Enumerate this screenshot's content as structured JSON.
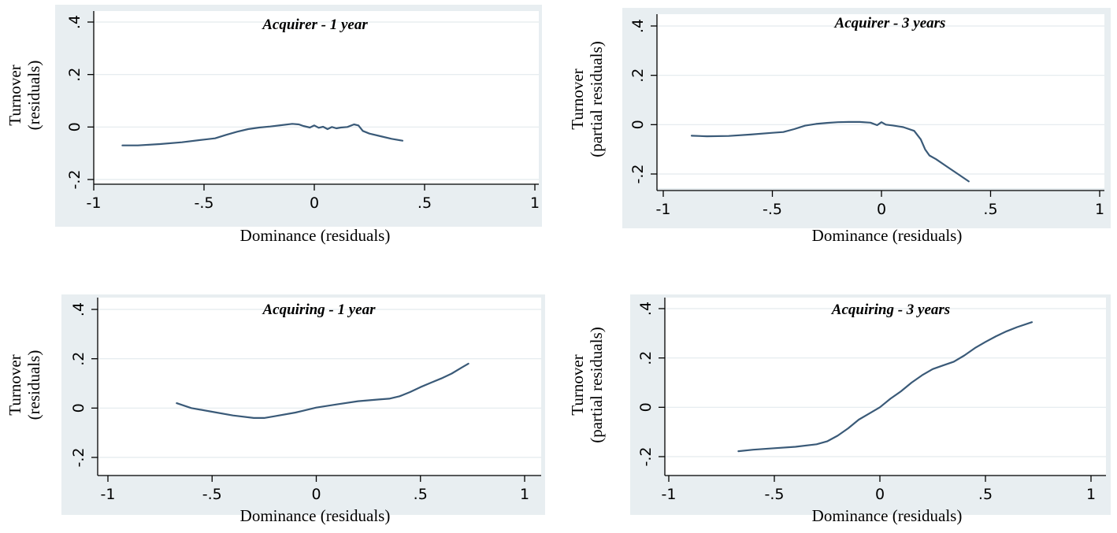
{
  "chart_data": [
    {
      "type": "line",
      "title": "Acquirer - 1 year",
      "xlabel": "Dominance (residuals)",
      "ylabel_lines": [
        "Turnover",
        "(residuals)"
      ],
      "xlim": [
        -1,
        1
      ],
      "ylim": [
        -0.2,
        0.4
      ],
      "xticks": [
        -1,
        -0.5,
        0,
        0.5,
        1
      ],
      "xtick_labels": [
        "-1",
        "-.5",
        "0",
        ".5",
        "1"
      ],
      "yticks": [
        -0.2,
        0,
        0.2,
        0.4
      ],
      "ytick_labels": [
        "-.2",
        "0",
        ".2",
        ".4"
      ],
      "grid": true,
      "series": [
        {
          "color": "#3a5a78",
          "x": [
            -0.87,
            -0.8,
            -0.7,
            -0.6,
            -0.5,
            -0.45,
            -0.4,
            -0.35,
            -0.3,
            -0.25,
            -0.2,
            -0.15,
            -0.1,
            -0.07,
            -0.05,
            -0.02,
            0.0,
            0.02,
            0.04,
            0.06,
            0.08,
            0.1,
            0.12,
            0.15,
            0.18,
            0.2,
            0.22,
            0.25,
            0.3,
            0.35,
            0.4
          ],
          "y": [
            -0.07,
            -0.07,
            -0.065,
            -0.058,
            -0.048,
            -0.043,
            -0.03,
            -0.018,
            -0.008,
            -0.002,
            0.002,
            0.007,
            0.012,
            0.01,
            0.004,
            -0.002,
            0.006,
            -0.003,
            0.001,
            -0.008,
            0.0,
            -0.005,
            -0.002,
            0.0,
            0.01,
            0.006,
            -0.015,
            -0.025,
            -0.035,
            -0.045,
            -0.052
          ]
        }
      ]
    },
    {
      "type": "line",
      "title": "Acquirer - 3 years",
      "xlabel": "Dominance (residuals)",
      "ylabel_lines": [
        "Turnover",
        "(partial residuals)"
      ],
      "xlim": [
        -1,
        1
      ],
      "ylim": [
        -0.2,
        0.4
      ],
      "xticks": [
        -1,
        -0.5,
        0,
        0.5,
        1
      ],
      "xtick_labels": [
        "-1",
        "-.5",
        "0",
        ".5",
        "1"
      ],
      "yticks": [
        -0.2,
        0,
        0.2,
        0.4
      ],
      "ytick_labels": [
        "-.2",
        "0",
        ".2",
        ".4"
      ],
      "grid": true,
      "series": [
        {
          "color": "#3a5a78",
          "x": [
            -0.87,
            -0.8,
            -0.7,
            -0.6,
            -0.5,
            -0.45,
            -0.4,
            -0.35,
            -0.3,
            -0.25,
            -0.2,
            -0.15,
            -0.1,
            -0.05,
            -0.02,
            0.0,
            0.02,
            0.05,
            0.1,
            0.15,
            0.18,
            0.2,
            0.22,
            0.25,
            0.3,
            0.35,
            0.4
          ],
          "y": [
            -0.045,
            -0.047,
            -0.046,
            -0.04,
            -0.033,
            -0.03,
            -0.018,
            -0.004,
            0.003,
            0.007,
            0.01,
            0.011,
            0.011,
            0.008,
            -0.002,
            0.01,
            0.0,
            -0.003,
            -0.01,
            -0.025,
            -0.06,
            -0.1,
            -0.125,
            -0.14,
            -0.17,
            -0.2,
            -0.23
          ]
        }
      ]
    },
    {
      "type": "line",
      "title": "Acquiring - 1 year",
      "xlabel": "Dominance (residuals)",
      "ylabel_lines": [
        "Turnover",
        "(residuals)"
      ],
      "xlim": [
        -1,
        1
      ],
      "ylim": [
        -0.2,
        0.4
      ],
      "xticks": [
        -1,
        -0.5,
        0,
        0.5,
        1
      ],
      "xtick_labels": [
        "-1",
        "-.5",
        "0",
        ".5",
        "1"
      ],
      "yticks": [
        -0.2,
        0,
        0.2,
        0.4
      ],
      "ytick_labels": [
        "-.2",
        "0",
        ".2",
        ".4"
      ],
      "grid": true,
      "series": [
        {
          "color": "#3a5a78",
          "x": [
            -0.67,
            -0.6,
            -0.5,
            -0.4,
            -0.3,
            -0.25,
            -0.2,
            -0.1,
            0.0,
            0.1,
            0.2,
            0.3,
            0.35,
            0.4,
            0.45,
            0.5,
            0.55,
            0.6,
            0.65,
            0.7,
            0.73
          ],
          "y": [
            0.02,
            0.0,
            -0.015,
            -0.03,
            -0.04,
            -0.04,
            -0.033,
            -0.018,
            0.002,
            0.015,
            0.028,
            0.035,
            0.038,
            0.048,
            0.065,
            0.085,
            0.103,
            0.12,
            0.14,
            0.165,
            0.18
          ]
        }
      ]
    },
    {
      "type": "line",
      "title": "Acquiring - 3 years",
      "xlabel": "Dominance (residuals)",
      "ylabel_lines": [
        "Turnover",
        "(partial residuals)"
      ],
      "xlim": [
        -1,
        1
      ],
      "ylim": [
        -0.2,
        0.4
      ],
      "xticks": [
        -1,
        -0.5,
        0,
        0.5,
        1
      ],
      "xtick_labels": [
        "-1",
        "-.5",
        "0",
        ".5",
        "1"
      ],
      "yticks": [
        -0.2,
        0,
        0.2,
        0.4
      ],
      "ytick_labels": [
        "-.2",
        "0",
        ".2",
        ".4"
      ],
      "grid": true,
      "series": [
        {
          "color": "#3a5a78",
          "x": [
            -0.67,
            -0.6,
            -0.5,
            -0.4,
            -0.3,
            -0.25,
            -0.2,
            -0.15,
            -0.1,
            -0.05,
            0.0,
            0.05,
            0.1,
            0.15,
            0.2,
            0.25,
            0.3,
            0.35,
            0.4,
            0.45,
            0.5,
            0.55,
            0.6,
            0.65,
            0.72
          ],
          "y": [
            -0.178,
            -0.172,
            -0.166,
            -0.16,
            -0.15,
            -0.138,
            -0.115,
            -0.085,
            -0.05,
            -0.025,
            0.0,
            0.035,
            0.065,
            0.1,
            0.13,
            0.155,
            0.17,
            0.185,
            0.21,
            0.24,
            0.265,
            0.288,
            0.308,
            0.325,
            0.345
          ]
        }
      ]
    }
  ]
}
